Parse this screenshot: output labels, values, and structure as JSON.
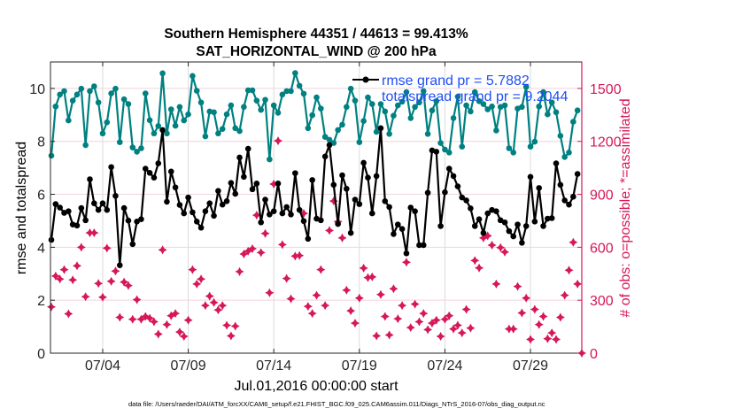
{
  "chart_data": {
    "type": "line",
    "title": [
      "Southern Hemisphere 44351 / 44613 = 99.413%",
      "SAT_HORIZONTAL_WIND @ 200 hPa"
    ],
    "xlabel": "Jul.01,2016 00:00:00 start",
    "ylabel": "rmse and totalspread",
    "ylabel_right": "# of obs: o=possible; *=assimilated",
    "x_unit": "days since Jul.01,2016 00:00 (6-hourly)",
    "xlim": [
      0,
      31
    ],
    "ylim": [
      0,
      11
    ],
    "ylim_right": [
      0,
      1650
    ],
    "x_ticks": [
      {
        "value": 3,
        "label": "07/04"
      },
      {
        "value": 8,
        "label": "07/09"
      },
      {
        "value": 13,
        "label": "07/14"
      },
      {
        "value": 18,
        "label": "07/19"
      },
      {
        "value": 23,
        "label": "07/24"
      },
      {
        "value": 28,
        "label": "07/29"
      }
    ],
    "y_ticks": [
      "0",
      "2",
      "4",
      "6",
      "8",
      "10"
    ],
    "y_ticks_right": [
      "0",
      "300",
      "600",
      "900",
      "1200",
      "1500"
    ],
    "grid": true,
    "legend_position": "top-right",
    "colors": {
      "rmse": "#000000",
      "totalspread": "#008080",
      "obs": "#d6175a",
      "legend_text": "#1f4ef5",
      "right_axis": "#d6175a"
    },
    "series": [
      {
        "name": "rmse grand pr = 5.7882",
        "axis": "left",
        "values": [
          4.28,
          5.63,
          5.5,
          5.3,
          5.36,
          4.86,
          4.82,
          5.48,
          5.02,
          6.57,
          5.66,
          5.41,
          5.66,
          5.41,
          7.03,
          5.94,
          3.32,
          5.48,
          5.01,
          4.12,
          4.97,
          5.06,
          6.97,
          6.81,
          6.63,
          7.17,
          8.43,
          5.72,
          6.86,
          6.26,
          5.6,
          5.28,
          5.88,
          5.32,
          4.97,
          4.74,
          5.36,
          5.66,
          5.19,
          6.13,
          5.61,
          5.74,
          6.43,
          6.02,
          7.39,
          6.66,
          7.72,
          6.19,
          6.41,
          4.94,
          5.8,
          5.24,
          5.36,
          6.41,
          5.28,
          5.52,
          5.24,
          6.8,
          5.41,
          4.99,
          4.32,
          6.54,
          5.08,
          5.02,
          7.43,
          7.86,
          6.36,
          4.88,
          6.72,
          6.21,
          4.54,
          5.8,
          5.63,
          7.19,
          6.63,
          5.28,
          6.69,
          8.5,
          5.74,
          5.52,
          4.5,
          4.86,
          4.69,
          3.77,
          5.5,
          5.36,
          4.08,
          4.08,
          6.06,
          7.66,
          7.61,
          4.8,
          6.08,
          6.97,
          6.69,
          6.3,
          5.88,
          5.77,
          5.47,
          4.8,
          5.06,
          4.54,
          5.28,
          5.41,
          5.36,
          5.02,
          4.94,
          4.61,
          4.41,
          4.86,
          4.17,
          4.8,
          6.66,
          4.97,
          6.24,
          4.8,
          5.08,
          5.1,
          7.17,
          6.36,
          5.77,
          5.61,
          5.91,
          6.77
        ]
      },
      {
        "name": "totalspread grand pr = 9.2044",
        "axis": "left",
        "values": [
          7.46,
          9.32,
          9.77,
          9.9,
          8.79,
          9.54,
          9.77,
          9.99,
          7.86,
          9.9,
          10.08,
          9.47,
          8.3,
          8.72,
          9.81,
          9.99,
          7.97,
          9.59,
          9.41,
          7.77,
          7.61,
          7.74,
          9.81,
          8.8,
          8.3,
          8.58,
          10.57,
          8.3,
          9.21,
          8.59,
          9.3,
          8.79,
          9.02,
          10.47,
          9.91,
          9.47,
          8.19,
          9.13,
          9.1,
          8.3,
          8.47,
          9.02,
          9.36,
          8.5,
          8.39,
          9.3,
          9.93,
          9.93,
          9.54,
          9.19,
          9.57,
          7.32,
          9.36,
          9.08,
          9.77,
          9.9,
          9.9,
          10.58,
          10.1,
          9.8,
          8.5,
          8.99,
          9.66,
          9.24,
          8.17,
          8.06,
          7.94,
          8.43,
          8.63,
          9.3,
          9.99,
          9.54,
          7.97,
          8.77,
          9.66,
          9.41,
          8.36,
          9.41,
          9.13,
          8.28,
          8.97,
          9.36,
          9.5,
          9.86,
          8.88,
          9.3,
          9.47,
          9.9,
          8.28,
          9.17,
          9.52,
          7.94,
          7.69,
          7.58,
          8.88,
          9.69,
          7.8,
          9.36,
          9.13,
          9.86,
          9.52,
          9.41,
          9.21,
          9.32,
          8.41,
          9.3,
          9.36,
          7.74,
          7.58,
          9.24,
          9.3,
          10.06,
          7.8,
          7.99,
          9.32,
          9.86,
          9.02,
          9.47,
          9.1,
          8.21,
          7.41,
          7.58,
          8.74,
          9.17
        ]
      },
      {
        "name": "# of obs assimilated",
        "axis": "right",
        "values": [
          262,
          437,
          420,
          473,
          223,
          415,
          495,
          600,
          320,
          682,
          682,
          395,
          317,
          595,
          407,
          465,
          203,
          403,
          383,
          192,
          303,
          192,
          208,
          198,
          178,
          108,
          585,
          162,
          212,
          225,
          120,
          95,
          187,
          473,
          392,
          420,
          270,
          323,
          287,
          245,
          270,
          158,
          98,
          153,
          462,
          562,
          578,
          592,
          782,
          570,
          678,
          342,
          958,
          1203,
          615,
          423,
          308,
          550,
          553,
          792,
          265,
          225,
          328,
          473,
          270,
          695,
          862,
          745,
          653,
          357,
          240,
          170,
          312,
          482,
          428,
          432,
          98,
          332,
          208,
          103,
          365,
          195,
          270,
          515,
          145,
          278,
          178,
          225,
          133,
          170,
          187,
          95,
          192,
          212,
          137,
          158,
          115,
          248,
          142,
          525,
          483,
          653,
          665,
          612,
          392,
          598,
          573,
          137,
          137,
          378,
          228,
          312,
          78,
          248,
          162,
          208,
          82,
          115,
          78,
          203,
          328,
          470,
          628,
          392,
          0
        ]
      }
    ]
  },
  "footer": "data file: /Users/raeder/DAI/ATM_forcXX/CAM6_setup/f.e21.FHIST_BGC.f09_025.CAM6assim.011/Diags_NTrS_2016-07/obs_diag_output.nc"
}
